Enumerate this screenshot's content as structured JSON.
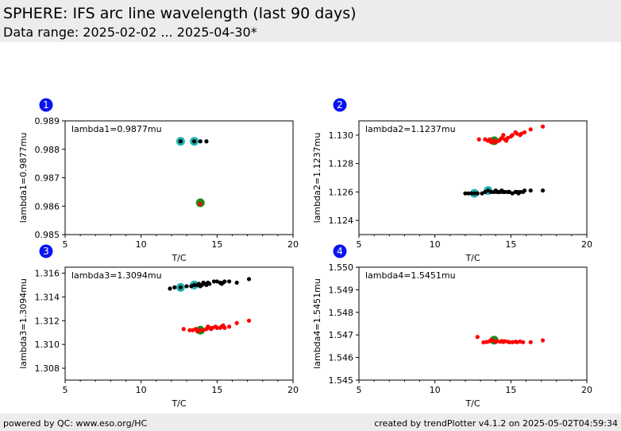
{
  "header": {
    "title": "SPHERE: IFS arc line wavelength (last 90 days)",
    "subtitle": "Data range: 2025-02-02 ... 2025-04-30*"
  },
  "footer": {
    "left": "powered by QC: www.eso.org/HC",
    "right": "created by trendPlotter v4.1.2 on 2025-05-02T04:59:34"
  },
  "colors": {
    "black": "#000000",
    "red": "#ff0000",
    "cyan": "#20b2b2",
    "green": "#1a8c1a",
    "badge": "#0a14f0"
  },
  "chart_data": [
    {
      "type": "scatter",
      "panel": "1",
      "annotation": "lambda1=0.9877mu",
      "xlabel": "T/C",
      "ylabel": "lambda1=0.9877mu",
      "xlim": [
        5,
        20
      ],
      "ylim": [
        0.985,
        0.989
      ],
      "xticks": [
        "5",
        "10",
        "15",
        "20"
      ],
      "yticks": [
        "0.985",
        "0.986",
        "0.987",
        "0.988",
        "0.989"
      ],
      "series": [
        {
          "color": "black",
          "points": [
            [
              12.6,
              0.98828
            ],
            [
              13.5,
              0.98828
            ],
            [
              13.9,
              0.98828
            ],
            [
              14.3,
              0.98828
            ]
          ]
        },
        {
          "color": "red",
          "points": [
            [
              13.9,
              0.98608
            ]
          ]
        }
      ],
      "highlight_cyan": [
        [
          12.6,
          0.98828
        ],
        [
          13.5,
          0.98828
        ]
      ],
      "highlight_green": [
        [
          13.9,
          0.98612
        ]
      ]
    },
    {
      "type": "scatter",
      "panel": "2",
      "annotation": "lambda2=1.1237mu",
      "xlabel": "T/C",
      "ylabel": "lambda2=1.1237mu",
      "xlim": [
        5,
        20
      ],
      "ylim": [
        1.123,
        1.131
      ],
      "xticks": [
        "5",
        "10",
        "15",
        "20"
      ],
      "yticks": [
        "1.124",
        "1.126",
        "1.128",
        "1.130"
      ],
      "series": [
        {
          "color": "black",
          "points": [
            [
              12.0,
              1.1259
            ],
            [
              12.2,
              1.1259
            ],
            [
              12.4,
              1.1259
            ],
            [
              12.6,
              1.1259
            ],
            [
              12.8,
              1.1259
            ],
            [
              13.1,
              1.1259
            ],
            [
              13.3,
              1.126
            ],
            [
              13.5,
              1.1261
            ],
            [
              13.7,
              1.126
            ],
            [
              13.9,
              1.126
            ],
            [
              14.0,
              1.1261
            ],
            [
              14.1,
              1.126
            ],
            [
              14.2,
              1.126
            ],
            [
              14.3,
              1.126
            ],
            [
              14.4,
              1.1261
            ],
            [
              14.5,
              1.126
            ],
            [
              14.6,
              1.126
            ],
            [
              14.8,
              1.126
            ],
            [
              14.9,
              1.126
            ],
            [
              15.1,
              1.1259
            ],
            [
              15.3,
              1.126
            ],
            [
              15.4,
              1.126
            ],
            [
              15.5,
              1.1259
            ],
            [
              15.6,
              1.126
            ],
            [
              15.8,
              1.126
            ],
            [
              15.9,
              1.1261
            ],
            [
              16.3,
              1.1261
            ],
            [
              17.1,
              1.1261
            ]
          ]
        },
        {
          "color": "red",
          "points": [
            [
              12.9,
              1.1297
            ],
            [
              13.3,
              1.1297
            ],
            [
              13.5,
              1.1296
            ],
            [
              13.6,
              1.1297
            ],
            [
              13.7,
              1.1295
            ],
            [
              13.9,
              1.1296
            ],
            [
              14.0,
              1.1295
            ],
            [
              14.2,
              1.1296
            ],
            [
              14.3,
              1.1297
            ],
            [
              14.4,
              1.1298
            ],
            [
              14.5,
              1.13
            ],
            [
              14.6,
              1.1297
            ],
            [
              14.7,
              1.1296
            ],
            [
              14.8,
              1.1298
            ],
            [
              15.0,
              1.1299
            ],
            [
              15.1,
              1.13
            ],
            [
              15.3,
              1.1302
            ],
            [
              15.4,
              1.1301
            ],
            [
              15.6,
              1.13
            ],
            [
              15.7,
              1.1301
            ],
            [
              15.9,
              1.1302
            ],
            [
              16.3,
              1.1304
            ],
            [
              17.1,
              1.1306
            ]
          ]
        }
      ],
      "highlight_cyan": [
        [
          12.6,
          1.1259
        ],
        [
          13.5,
          1.1261
        ]
      ],
      "highlight_green": [
        [
          13.9,
          1.1296
        ]
      ]
    },
    {
      "type": "scatter",
      "panel": "3",
      "annotation": "lambda3=1.3094mu",
      "xlabel": "T/C",
      "ylabel": "lambda3=1.3094mu",
      "xlim": [
        5,
        20
      ],
      "ylim": [
        1.307,
        1.3165
      ],
      "xticks": [
        "5",
        "10",
        "15",
        "20"
      ],
      "yticks": [
        "1.308",
        "1.310",
        "1.312",
        "1.314",
        "1.316"
      ],
      "series": [
        {
          "color": "black",
          "points": [
            [
              11.9,
              1.3147
            ],
            [
              12.2,
              1.3148
            ],
            [
              12.6,
              1.3148
            ],
            [
              13.0,
              1.3149
            ],
            [
              13.3,
              1.3149
            ],
            [
              13.5,
              1.315
            ],
            [
              13.7,
              1.315
            ],
            [
              13.8,
              1.3151
            ],
            [
              13.9,
              1.3149
            ],
            [
              14.0,
              1.315
            ],
            [
              14.1,
              1.3152
            ],
            [
              14.2,
              1.3151
            ],
            [
              14.3,
              1.315
            ],
            [
              14.4,
              1.3152
            ],
            [
              14.5,
              1.3151
            ],
            [
              14.8,
              1.3153
            ],
            [
              15.0,
              1.3153
            ],
            [
              15.2,
              1.3152
            ],
            [
              15.3,
              1.3151
            ],
            [
              15.4,
              1.3152
            ],
            [
              15.5,
              1.3153
            ],
            [
              15.8,
              1.3153
            ],
            [
              16.3,
              1.3152
            ],
            [
              17.1,
              1.3155
            ]
          ]
        },
        {
          "color": "red",
          "points": [
            [
              12.8,
              1.3113
            ],
            [
              13.2,
              1.3112
            ],
            [
              13.4,
              1.3112
            ],
            [
              13.6,
              1.3113
            ],
            [
              13.7,
              1.3111
            ],
            [
              13.9,
              1.3112
            ],
            [
              14.1,
              1.3112
            ],
            [
              14.3,
              1.3113
            ],
            [
              14.4,
              1.3115
            ],
            [
              14.5,
              1.3114
            ],
            [
              14.6,
              1.3113
            ],
            [
              14.7,
              1.3114
            ],
            [
              14.9,
              1.3115
            ],
            [
              15.0,
              1.3114
            ],
            [
              15.2,
              1.3114
            ],
            [
              15.3,
              1.3115
            ],
            [
              15.4,
              1.3116
            ],
            [
              15.5,
              1.3114
            ],
            [
              15.8,
              1.3115
            ],
            [
              16.3,
              1.3118
            ],
            [
              17.1,
              1.312
            ]
          ]
        }
      ],
      "highlight_cyan": [
        [
          12.6,
          1.3148
        ],
        [
          13.5,
          1.315
        ]
      ],
      "highlight_green": [
        [
          13.9,
          1.3112
        ]
      ]
    },
    {
      "type": "scatter",
      "panel": "4",
      "annotation": "lambda4=1.5451mu",
      "xlabel": "T/C",
      "ylabel": "lambda4=1.5451mu",
      "xlim": [
        5,
        20
      ],
      "ylim": [
        1.545,
        1.55
      ],
      "xticks": [
        "5",
        "10",
        "15",
        "20"
      ],
      "yticks": [
        "1.545",
        "1.546",
        "1.547",
        "1.548",
        "1.549",
        "1.550"
      ],
      "series": [
        {
          "color": "red",
          "points": [
            [
              12.8,
              1.54691
            ],
            [
              13.2,
              1.54667
            ],
            [
              13.4,
              1.54669
            ],
            [
              13.6,
              1.54672
            ],
            [
              13.7,
              1.54678
            ],
            [
              13.8,
              1.54675
            ],
            [
              14.0,
              1.5467
            ],
            [
              14.1,
              1.54672
            ],
            [
              14.3,
              1.5467
            ],
            [
              14.4,
              1.54673
            ],
            [
              14.5,
              1.54669
            ],
            [
              14.6,
              1.54672
            ],
            [
              14.8,
              1.5467
            ],
            [
              14.9,
              1.54668
            ],
            [
              15.1,
              1.54668
            ],
            [
              15.3,
              1.5467
            ],
            [
              15.4,
              1.54668
            ],
            [
              15.6,
              1.54671
            ],
            [
              15.8,
              1.54668
            ],
            [
              16.3,
              1.54668
            ],
            [
              17.1,
              1.54676
            ]
          ]
        }
      ],
      "highlight_cyan": [],
      "highlight_green": [
        [
          13.9,
          1.54677
        ]
      ]
    }
  ]
}
